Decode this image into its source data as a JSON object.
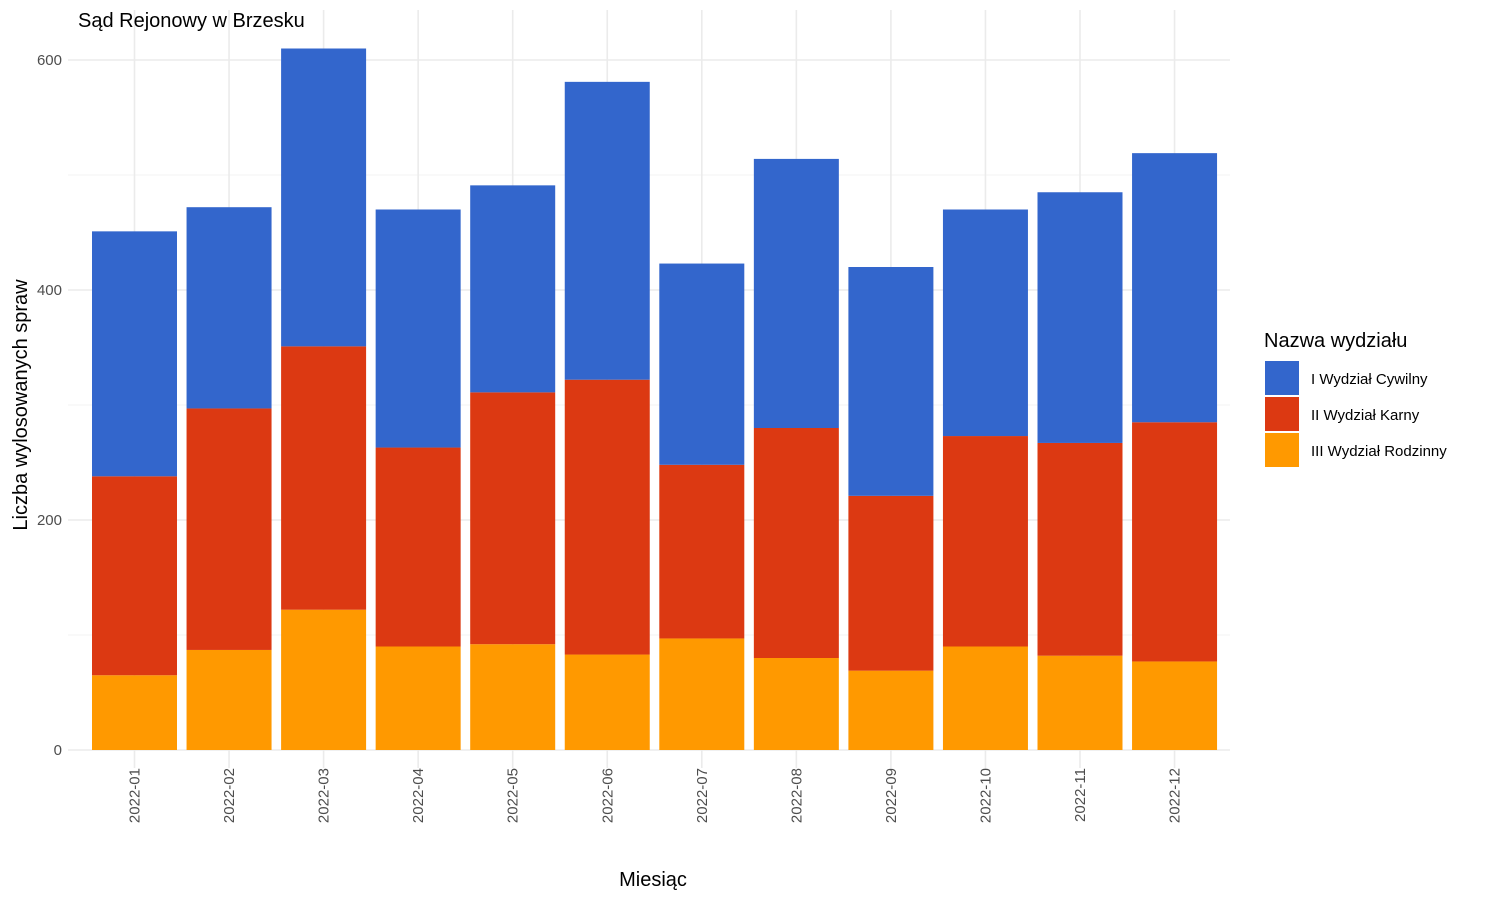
{
  "chart_data": {
    "type": "bar",
    "stacked": true,
    "title": "Sąd Rejonowy w Brzesku",
    "xlabel": "Miesiąc",
    "ylabel": "Liczba wylosowanych spraw",
    "ylim": [
      0,
      620
    ],
    "yticks": [
      0,
      200,
      400,
      600
    ],
    "grid": true,
    "legend_position": "right",
    "legend_title": "Nazwa wydziału",
    "categories": [
      "2022-01",
      "2022-02",
      "2022-03",
      "2022-04",
      "2022-05",
      "2022-06",
      "2022-07",
      "2022-08",
      "2022-09",
      "2022-10",
      "2022-11",
      "2022-12"
    ],
    "series": [
      {
        "name": "III Wydział Rodzinny",
        "color": "#ff9900",
        "values": [
          65,
          87,
          122,
          90,
          92,
          83,
          97,
          80,
          69,
          90,
          82,
          77
        ]
      },
      {
        "name": "II Wydział Karny",
        "color": "#dc3912",
        "values": [
          173,
          210,
          229,
          173,
          219,
          239,
          151,
          200,
          152,
          183,
          185,
          208
        ]
      },
      {
        "name": "I Wydział Cywilny",
        "color": "#3366cc",
        "values": [
          213,
          175,
          259,
          207,
          180,
          259,
          175,
          234,
          199,
          197,
          218,
          234
        ]
      }
    ],
    "legend_order": [
      "I Wydział Cywilny",
      "II Wydział Karny",
      "III Wydział Rodzinny"
    ]
  }
}
